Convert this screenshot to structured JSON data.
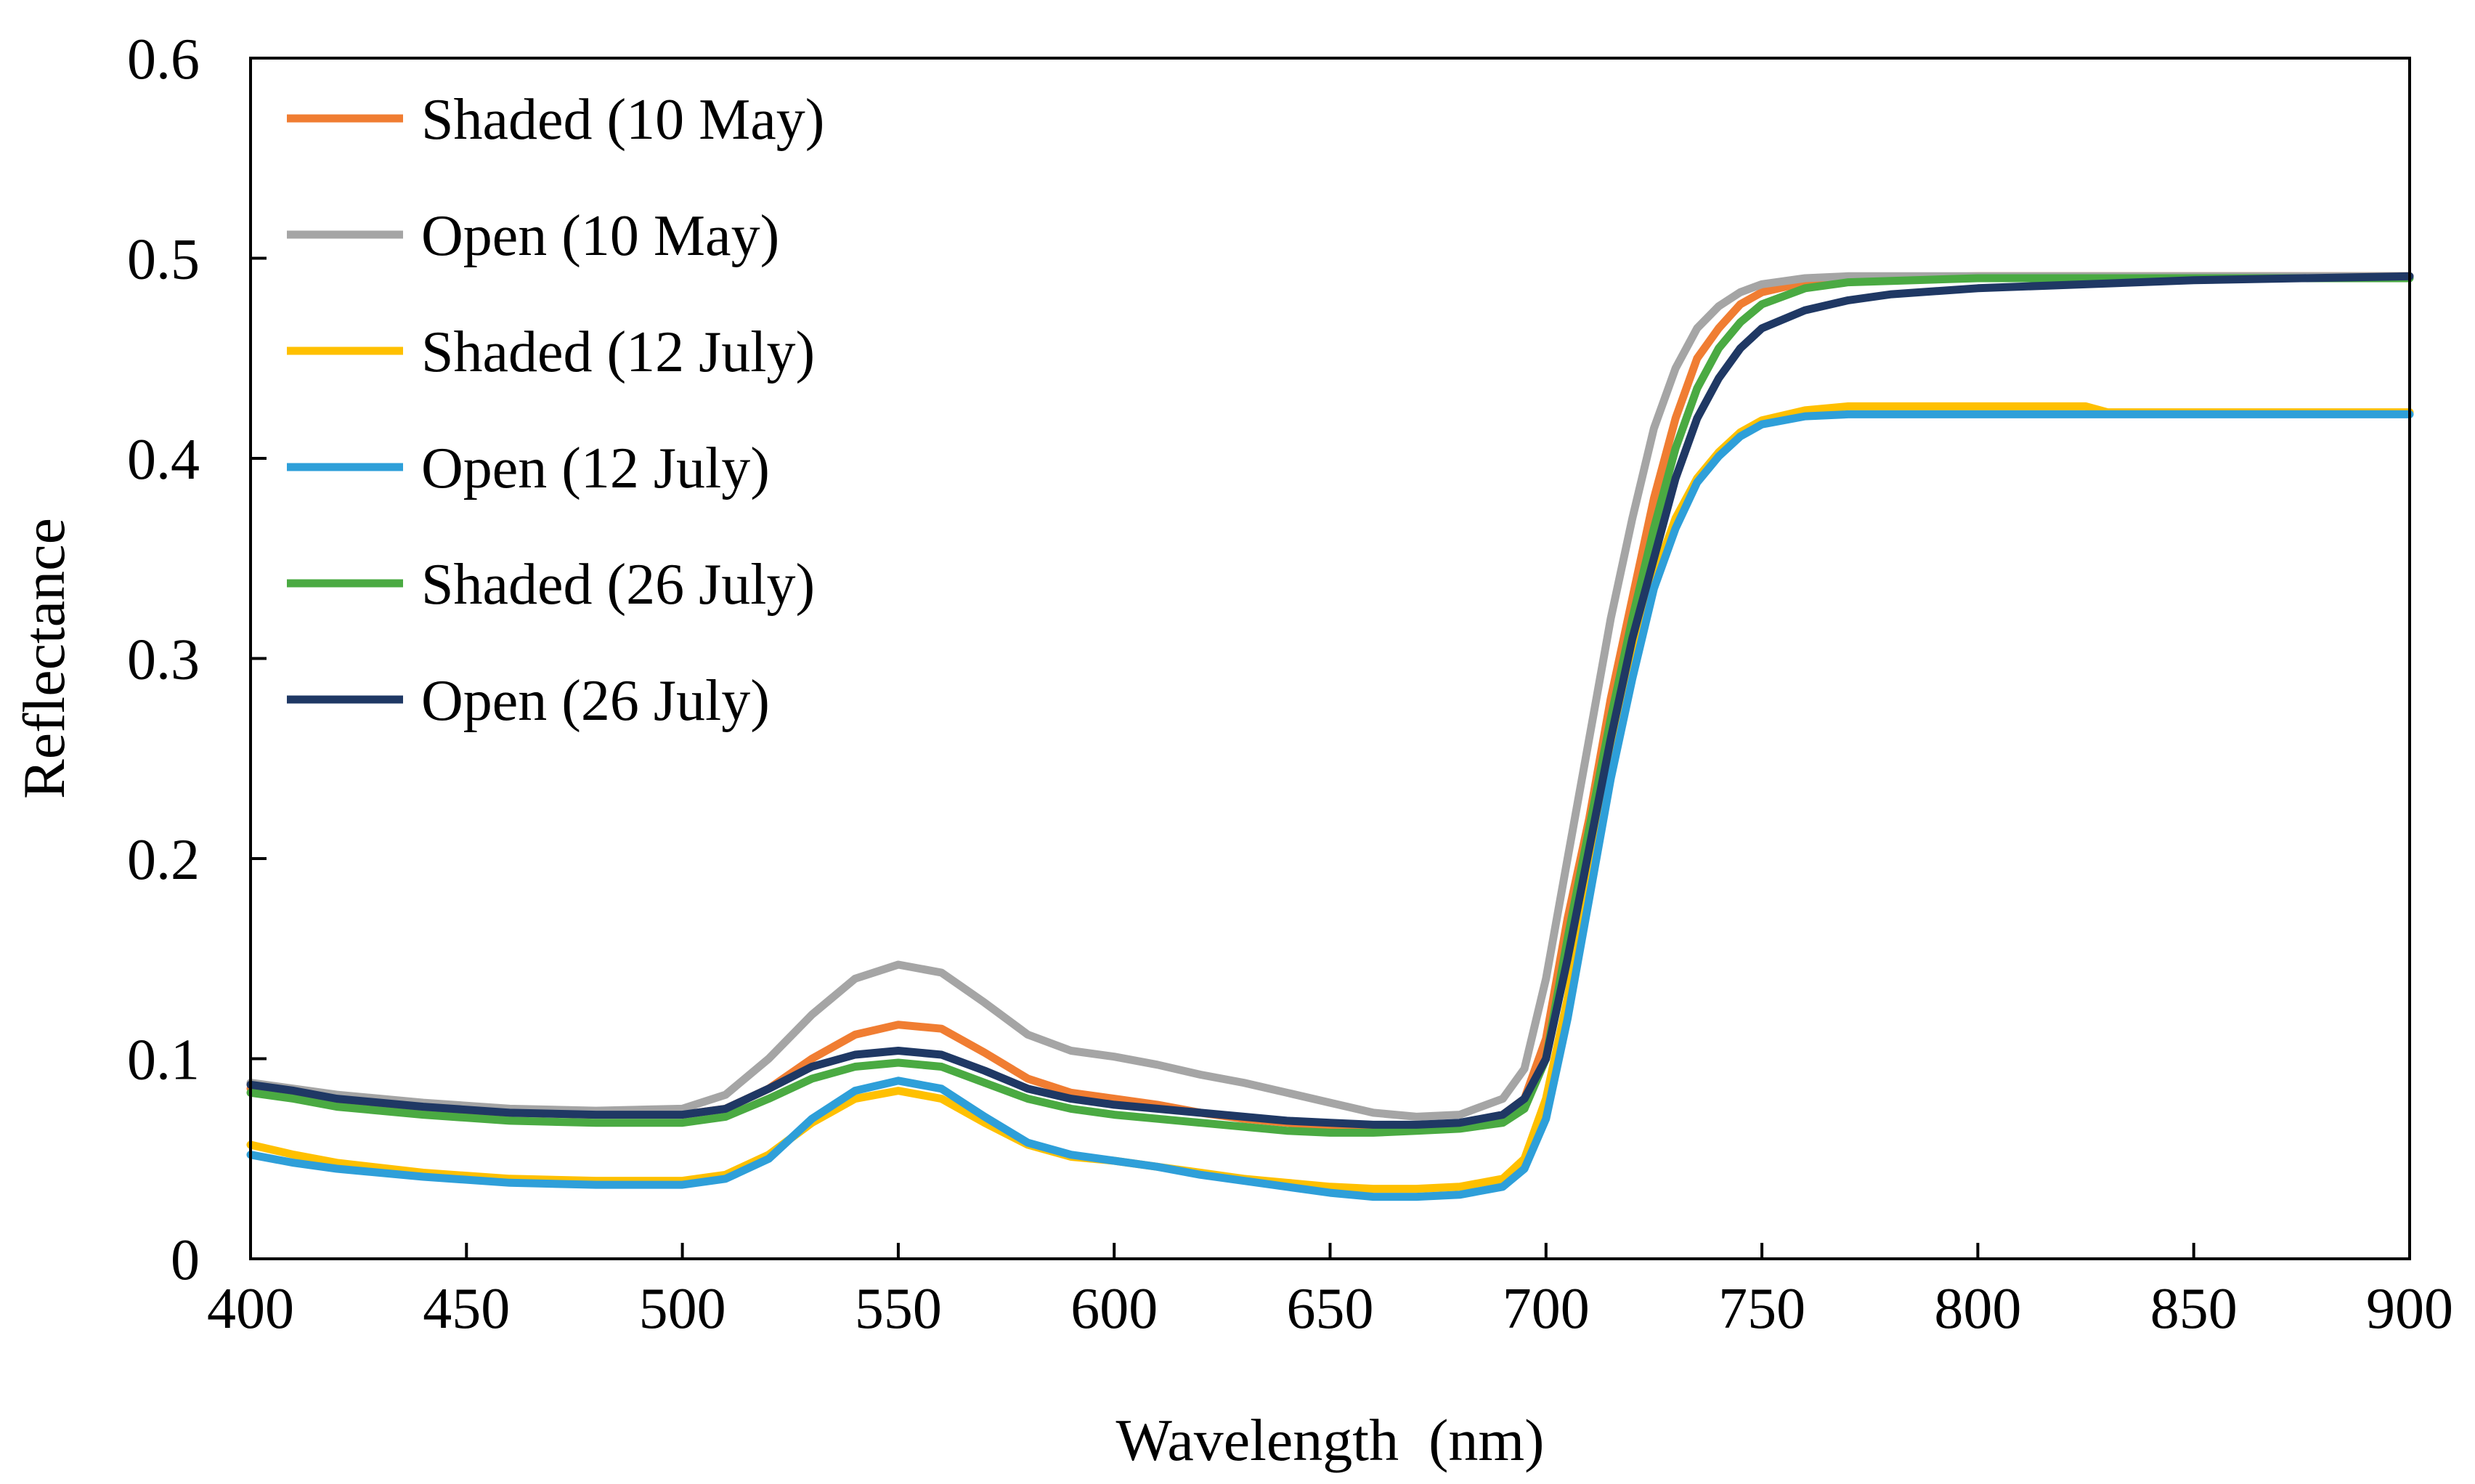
{
  "chart_data": {
    "type": "line",
    "title": "",
    "xlabel": "Wavelength  (nm)",
    "ylabel": "Reflectance",
    "xlim": [
      400,
      900
    ],
    "ylim": [
      0,
      0.6
    ],
    "x_ticks": [
      "400",
      "450",
      "500",
      "550",
      "600",
      "650",
      "700",
      "750",
      "800",
      "850",
      "900"
    ],
    "y_ticks": [
      "0",
      "0.1",
      "0.2",
      "0.3",
      "0.4",
      "0.5",
      "0.6"
    ],
    "grid": false,
    "legend_position": "top-left",
    "series": [
      {
        "name": "Shaded (10 May)",
        "color": "#F07D32",
        "points": [
          [
            400,
            0.085
          ],
          [
            410,
            0.082
          ],
          [
            420,
            0.079
          ],
          [
            440,
            0.075
          ],
          [
            460,
            0.073
          ],
          [
            480,
            0.072
          ],
          [
            500,
            0.072
          ],
          [
            510,
            0.075
          ],
          [
            520,
            0.085
          ],
          [
            530,
            0.1
          ],
          [
            540,
            0.112
          ],
          [
            550,
            0.117
          ],
          [
            560,
            0.115
          ],
          [
            570,
            0.103
          ],
          [
            580,
            0.09
          ],
          [
            590,
            0.083
          ],
          [
            600,
            0.08
          ],
          [
            610,
            0.077
          ],
          [
            620,
            0.073
          ],
          [
            630,
            0.07
          ],
          [
            640,
            0.068
          ],
          [
            650,
            0.066
          ],
          [
            660,
            0.066
          ],
          [
            670,
            0.066
          ],
          [
            680,
            0.067
          ],
          [
            690,
            0.072
          ],
          [
            695,
            0.08
          ],
          [
            700,
            0.11
          ],
          [
            705,
            0.17
          ],
          [
            710,
            0.22
          ],
          [
            715,
            0.28
          ],
          [
            720,
            0.33
          ],
          [
            725,
            0.38
          ],
          [
            730,
            0.42
          ],
          [
            735,
            0.45
          ],
          [
            740,
            0.465
          ],
          [
            745,
            0.477
          ],
          [
            750,
            0.483
          ],
          [
            760,
            0.488
          ],
          [
            770,
            0.49
          ],
          [
            800,
            0.491
          ],
          [
            860,
            0.491
          ],
          [
            900,
            0.491
          ]
        ]
      },
      {
        "name": "Open (10 May)",
        "color": "#A5A5A5",
        "points": [
          [
            400,
            0.088
          ],
          [
            410,
            0.085
          ],
          [
            420,
            0.082
          ],
          [
            440,
            0.078
          ],
          [
            460,
            0.075
          ],
          [
            480,
            0.074
          ],
          [
            500,
            0.075
          ],
          [
            510,
            0.082
          ],
          [
            520,
            0.1
          ],
          [
            530,
            0.122
          ],
          [
            540,
            0.14
          ],
          [
            550,
            0.147
          ],
          [
            560,
            0.143
          ],
          [
            570,
            0.128
          ],
          [
            580,
            0.112
          ],
          [
            590,
            0.104
          ],
          [
            600,
            0.101
          ],
          [
            610,
            0.097
          ],
          [
            620,
            0.092
          ],
          [
            630,
            0.088
          ],
          [
            640,
            0.083
          ],
          [
            650,
            0.078
          ],
          [
            660,
            0.073
          ],
          [
            670,
            0.071
          ],
          [
            680,
            0.072
          ],
          [
            690,
            0.08
          ],
          [
            695,
            0.095
          ],
          [
            700,
            0.14
          ],
          [
            705,
            0.2
          ],
          [
            710,
            0.26
          ],
          [
            715,
            0.32
          ],
          [
            720,
            0.37
          ],
          [
            725,
            0.415
          ],
          [
            730,
            0.445
          ],
          [
            735,
            0.465
          ],
          [
            740,
            0.476
          ],
          [
            745,
            0.483
          ],
          [
            750,
            0.487
          ],
          [
            760,
            0.49
          ],
          [
            770,
            0.491
          ],
          [
            900,
            0.491
          ]
        ]
      },
      {
        "name": "Shaded (12 July)",
        "color": "#FFC000",
        "points": [
          [
            400,
            0.057
          ],
          [
            410,
            0.052
          ],
          [
            420,
            0.048
          ],
          [
            440,
            0.043
          ],
          [
            460,
            0.04
          ],
          [
            480,
            0.039
          ],
          [
            500,
            0.039
          ],
          [
            510,
            0.042
          ],
          [
            520,
            0.052
          ],
          [
            530,
            0.068
          ],
          [
            540,
            0.08
          ],
          [
            550,
            0.084
          ],
          [
            560,
            0.08
          ],
          [
            570,
            0.068
          ],
          [
            580,
            0.057
          ],
          [
            590,
            0.051
          ],
          [
            600,
            0.049
          ],
          [
            610,
            0.046
          ],
          [
            620,
            0.043
          ],
          [
            630,
            0.04
          ],
          [
            640,
            0.038
          ],
          [
            650,
            0.036
          ],
          [
            660,
            0.035
          ],
          [
            670,
            0.035
          ],
          [
            680,
            0.036
          ],
          [
            690,
            0.04
          ],
          [
            695,
            0.05
          ],
          [
            700,
            0.08
          ],
          [
            705,
            0.13
          ],
          [
            710,
            0.19
          ],
          [
            715,
            0.25
          ],
          [
            720,
            0.3
          ],
          [
            725,
            0.34
          ],
          [
            730,
            0.37
          ],
          [
            735,
            0.39
          ],
          [
            740,
            0.403
          ],
          [
            745,
            0.413
          ],
          [
            750,
            0.419
          ],
          [
            760,
            0.424
          ],
          [
            770,
            0.426
          ],
          [
            825,
            0.426
          ],
          [
            830,
            0.423
          ],
          [
            900,
            0.423
          ]
        ]
      },
      {
        "name": "Open (12 July)",
        "color": "#2E9FD9",
        "points": [
          [
            400,
            0.052
          ],
          [
            410,
            0.048
          ],
          [
            420,
            0.045
          ],
          [
            440,
            0.041
          ],
          [
            460,
            0.038
          ],
          [
            480,
            0.037
          ],
          [
            500,
            0.037
          ],
          [
            510,
            0.04
          ],
          [
            520,
            0.05
          ],
          [
            530,
            0.07
          ],
          [
            540,
            0.084
          ],
          [
            550,
            0.089
          ],
          [
            560,
            0.085
          ],
          [
            570,
            0.071
          ],
          [
            580,
            0.058
          ],
          [
            590,
            0.052
          ],
          [
            600,
            0.049
          ],
          [
            610,
            0.046
          ],
          [
            620,
            0.042
          ],
          [
            630,
            0.039
          ],
          [
            640,
            0.036
          ],
          [
            650,
            0.033
          ],
          [
            660,
            0.031
          ],
          [
            670,
            0.031
          ],
          [
            680,
            0.032
          ],
          [
            690,
            0.036
          ],
          [
            695,
            0.045
          ],
          [
            700,
            0.07
          ],
          [
            705,
            0.12
          ],
          [
            710,
            0.18
          ],
          [
            715,
            0.24
          ],
          [
            720,
            0.29
          ],
          [
            725,
            0.335
          ],
          [
            730,
            0.365
          ],
          [
            735,
            0.388
          ],
          [
            740,
            0.401
          ],
          [
            745,
            0.411
          ],
          [
            750,
            0.417
          ],
          [
            760,
            0.421
          ],
          [
            770,
            0.422
          ],
          [
            900,
            0.422
          ]
        ]
      },
      {
        "name": "Shaded (26 July)",
        "color": "#4AAA42",
        "points": [
          [
            400,
            0.083
          ],
          [
            410,
            0.08
          ],
          [
            420,
            0.076
          ],
          [
            440,
            0.072
          ],
          [
            460,
            0.069
          ],
          [
            480,
            0.068
          ],
          [
            500,
            0.068
          ],
          [
            510,
            0.071
          ],
          [
            520,
            0.08
          ],
          [
            530,
            0.09
          ],
          [
            540,
            0.096
          ],
          [
            550,
            0.098
          ],
          [
            560,
            0.096
          ],
          [
            570,
            0.088
          ],
          [
            580,
            0.08
          ],
          [
            590,
            0.075
          ],
          [
            600,
            0.072
          ],
          [
            610,
            0.07
          ],
          [
            620,
            0.068
          ],
          [
            630,
            0.066
          ],
          [
            640,
            0.064
          ],
          [
            650,
            0.063
          ],
          [
            660,
            0.063
          ],
          [
            670,
            0.064
          ],
          [
            680,
            0.065
          ],
          [
            690,
            0.068
          ],
          [
            695,
            0.075
          ],
          [
            700,
            0.1
          ],
          [
            705,
            0.16
          ],
          [
            710,
            0.215
          ],
          [
            715,
            0.27
          ],
          [
            720,
            0.32
          ],
          [
            725,
            0.365
          ],
          [
            730,
            0.405
          ],
          [
            735,
            0.435
          ],
          [
            740,
            0.455
          ],
          [
            745,
            0.468
          ],
          [
            750,
            0.477
          ],
          [
            760,
            0.485
          ],
          [
            770,
            0.488
          ],
          [
            800,
            0.49
          ],
          [
            900,
            0.49
          ]
        ]
      },
      {
        "name": "Open (26 July)",
        "color": "#1F3864",
        "points": [
          [
            400,
            0.087
          ],
          [
            410,
            0.084
          ],
          [
            420,
            0.08
          ],
          [
            440,
            0.076
          ],
          [
            460,
            0.073
          ],
          [
            480,
            0.072
          ],
          [
            500,
            0.072
          ],
          [
            510,
            0.075
          ],
          [
            520,
            0.085
          ],
          [
            530,
            0.096
          ],
          [
            540,
            0.102
          ],
          [
            550,
            0.104
          ],
          [
            560,
            0.102
          ],
          [
            570,
            0.094
          ],
          [
            580,
            0.085
          ],
          [
            590,
            0.08
          ],
          [
            600,
            0.077
          ],
          [
            610,
            0.075
          ],
          [
            620,
            0.073
          ],
          [
            630,
            0.071
          ],
          [
            640,
            0.069
          ],
          [
            650,
            0.068
          ],
          [
            660,
            0.067
          ],
          [
            670,
            0.067
          ],
          [
            680,
            0.068
          ],
          [
            690,
            0.072
          ],
          [
            695,
            0.08
          ],
          [
            700,
            0.1
          ],
          [
            705,
            0.15
          ],
          [
            710,
            0.205
          ],
          [
            715,
            0.26
          ],
          [
            720,
            0.31
          ],
          [
            725,
            0.35
          ],
          [
            730,
            0.39
          ],
          [
            735,
            0.42
          ],
          [
            740,
            0.44
          ],
          [
            745,
            0.455
          ],
          [
            750,
            0.465
          ],
          [
            760,
            0.474
          ],
          [
            770,
            0.479
          ],
          [
            780,
            0.482
          ],
          [
            800,
            0.485
          ],
          [
            850,
            0.489
          ],
          [
            900,
            0.491
          ]
        ]
      }
    ]
  }
}
